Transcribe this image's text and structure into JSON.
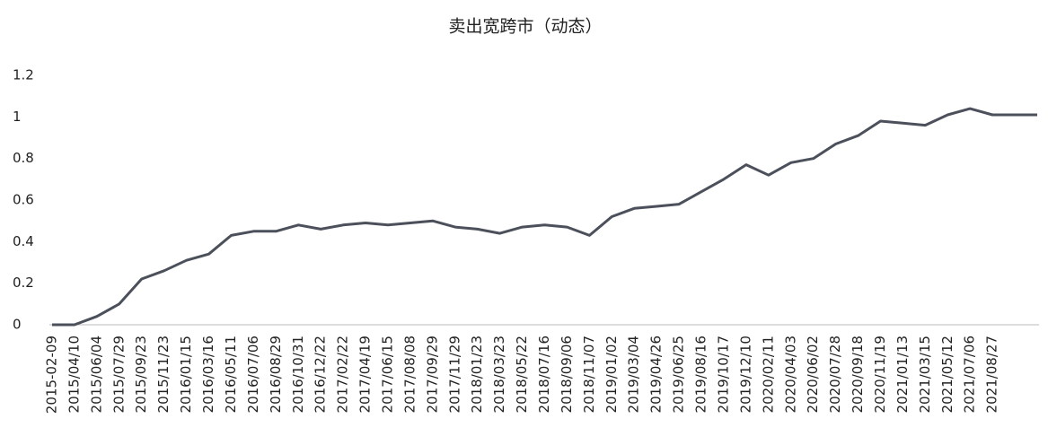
{
  "chart_data": {
    "type": "line",
    "title": "卖出宽跨市（动态）",
    "categories": [
      "2015-02-09",
      "2015/04/10",
      "2015/06/04",
      "2015/07/29",
      "2015/09/23",
      "2015/11/23",
      "2016/01/15",
      "2016/03/16",
      "2016/05/11",
      "2016/07/06",
      "2016/08/29",
      "2016/10/31",
      "2016/12/22",
      "2017/02/22",
      "2017/04/19",
      "2017/06/15",
      "2017/08/08",
      "2017/09/29",
      "2017/11/29",
      "2018/01/23",
      "2018/03/23",
      "2018/05/22",
      "2018/07/16",
      "2018/09/06",
      "2018/11/07",
      "2019/01/02",
      "2019/03/04",
      "2019/04/26",
      "2019/06/25",
      "2019/08/16",
      "2019/10/17",
      "2019/12/10",
      "2020/02/11",
      "2020/04/03",
      "2020/06/02",
      "2020/07/28",
      "2020/09/18",
      "2020/11/19",
      "2021/01/13",
      "2021/03/15",
      "2021/05/12",
      "2021/07/06",
      "2021/08/27",
      null,
      null
    ],
    "values": [
      0,
      0,
      0.04,
      0.1,
      0.22,
      0.26,
      0.31,
      0.34,
      0.43,
      0.45,
      0.45,
      0.48,
      0.46,
      0.48,
      0.49,
      0.48,
      0.49,
      0.5,
      0.47,
      0.46,
      0.44,
      0.47,
      0.48,
      0.47,
      0.43,
      0.52,
      0.56,
      0.57,
      0.58,
      0.64,
      0.7,
      0.77,
      0.72,
      0.78,
      0.8,
      0.87,
      0.91,
      0.98,
      0.97,
      0.96,
      1.01,
      1.04,
      1.01,
      1.01,
      1.01
    ],
    "color": "#4b505b",
    "ylim": [
      0,
      1.2
    ],
    "yticks": [
      0,
      0.2,
      0.4,
      0.6,
      0.8,
      1,
      1.2
    ],
    "grid": false
  }
}
